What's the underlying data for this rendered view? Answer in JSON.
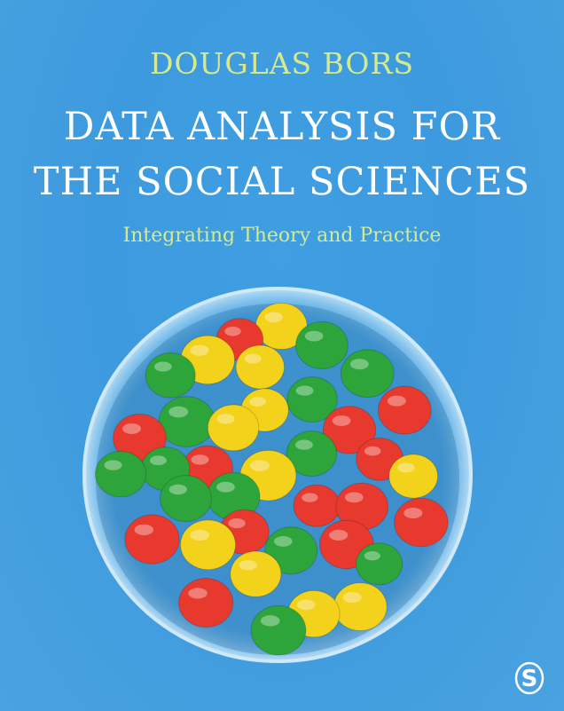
{
  "cover": {
    "author": "DOUGLAS BORS",
    "title_line1": "DATA ANALYSIS FOR",
    "title_line2": "THE SOCIAL SCIENCES",
    "subtitle": "Integrating Theory and Practice"
  },
  "colors": {
    "background": "#3f9fe2",
    "author_text": "#d6ea8c",
    "title_text": "#ffffff",
    "candy_red": "#e8392f",
    "candy_yellow": "#f3d21c",
    "candy_green": "#2ea53a"
  },
  "image": {
    "subject": "glass bowl of red, yellow and green candies",
    "publisher_logo": "sage-s-logo"
  }
}
